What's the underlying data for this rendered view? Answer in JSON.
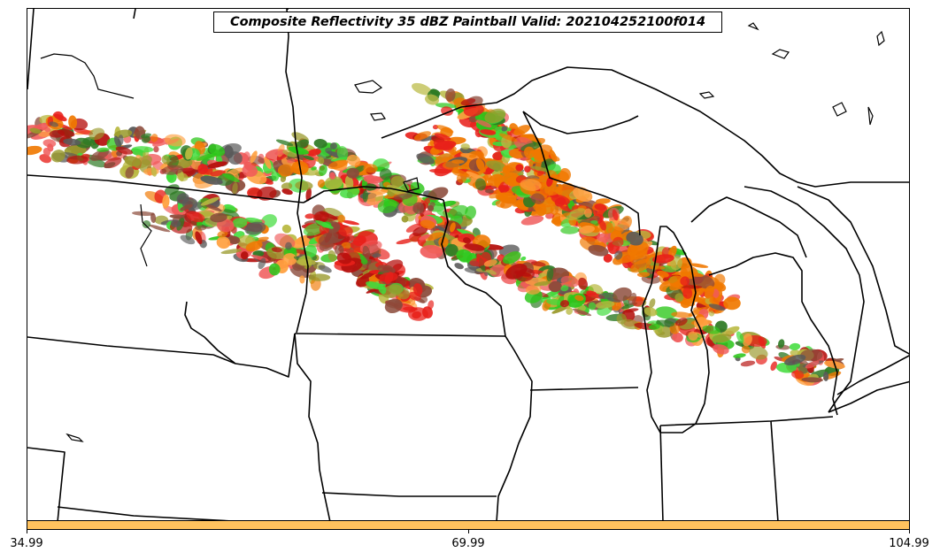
{
  "title": "Composite Reflectivity 35 dBZ Paintball Valid: 202104252100f014",
  "colorbar": {
    "color": "#ffc25e",
    "min_label": "34.99",
    "mid_label": "69.99",
    "max_label": "104.99"
  },
  "paint_colors": {
    "red": "#e8201a",
    "dark_red": "#b5100d",
    "orange": "#f07800",
    "light_orange": "#ffa040",
    "olive": "#9a9a2c",
    "dark_green": "#2e7a24",
    "green": "#2cc61a",
    "light_green": "#3fdc3a",
    "brown": "#8b4a3a",
    "gray": "#5a5a5a",
    "salmon": "#f05a5a",
    "yellow_olive": "#b8b840"
  }
}
